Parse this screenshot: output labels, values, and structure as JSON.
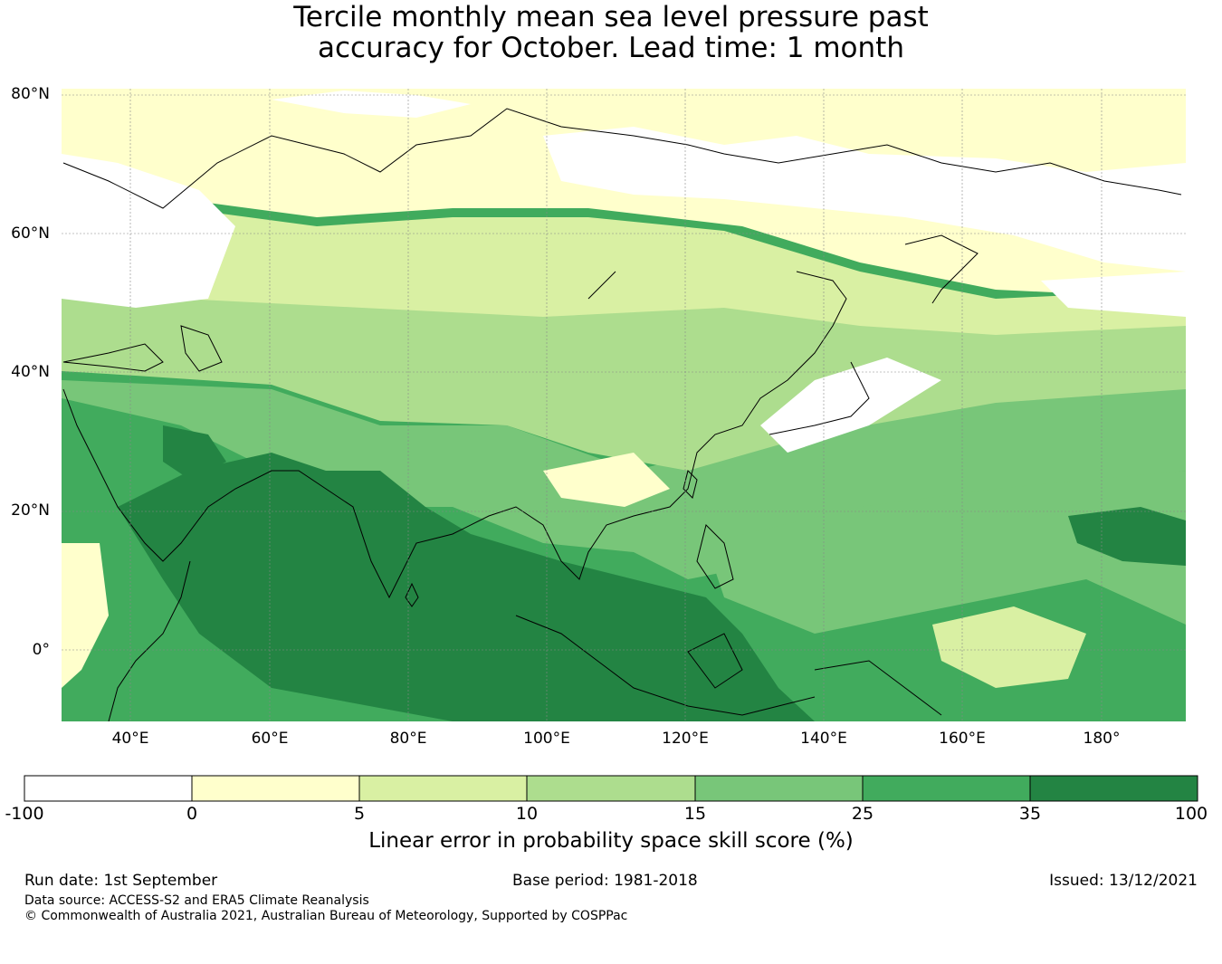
{
  "title": {
    "line1": "Tercile monthly mean sea level pressure past",
    "line2": "accuracy for October. Lead time: 1 month"
  },
  "map": {
    "lat_labels": [
      "80°N",
      "60°N",
      "40°N",
      "20°N",
      "0°"
    ],
    "lon_labels": [
      "40°E",
      "60°E",
      "80°E",
      "100°E",
      "120°E",
      "140°E",
      "160°E",
      "180°"
    ],
    "gridlines": true
  },
  "colorbar": {
    "title": "Linear error in probability space skill score (%)",
    "ticks": [
      "-100",
      "0",
      "5",
      "10",
      "15",
      "25",
      "35",
      "100"
    ],
    "colors": [
      "#ffffff",
      "#ffffcc",
      "#d9f0a3",
      "#addd8e",
      "#78c679",
      "#41ab5d",
      "#238443"
    ]
  },
  "footer": {
    "run_date": "Run date: 1st September",
    "base_period": "Base period: 1981-2018",
    "issued": "Issued: 13/12/2021",
    "data_source": "Data source: ACCESS-S2 and ERA5 Climate Reanalysis",
    "copyright": "© Commonwealth of Australia 2021, Australian Bureau of Meteorology, Supported by COSPPac"
  }
}
